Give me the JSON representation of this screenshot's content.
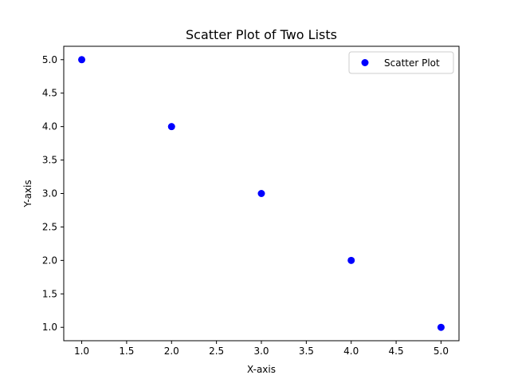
{
  "chart_data": {
    "type": "scatter",
    "title": "Scatter Plot of Two Lists",
    "xlabel": "X-axis",
    "ylabel": "Y-axis",
    "xlim": [
      0.8,
      5.2
    ],
    "ylim": [
      0.8,
      5.2
    ],
    "x_ticks": [
      1.0,
      1.5,
      2.0,
      2.5,
      3.0,
      3.5,
      4.0,
      4.5,
      5.0
    ],
    "x_tick_labels": [
      "1.0",
      "1.5",
      "2.0",
      "2.5",
      "3.0",
      "3.5",
      "4.0",
      "4.5",
      "5.0"
    ],
    "y_ticks": [
      1.0,
      1.5,
      2.0,
      2.5,
      3.0,
      3.5,
      4.0,
      4.5,
      5.0
    ],
    "y_tick_labels": [
      "1.0",
      "1.5",
      "2.0",
      "2.5",
      "3.0",
      "3.5",
      "4.0",
      "4.5",
      "5.0"
    ],
    "grid": false,
    "legend_position": "top-right",
    "series": [
      {
        "name": "Scatter Plot",
        "color": "#0000ff",
        "x": [
          1,
          2,
          3,
          4,
          5
        ],
        "y": [
          5,
          4,
          3,
          2,
          1
        ]
      }
    ]
  }
}
